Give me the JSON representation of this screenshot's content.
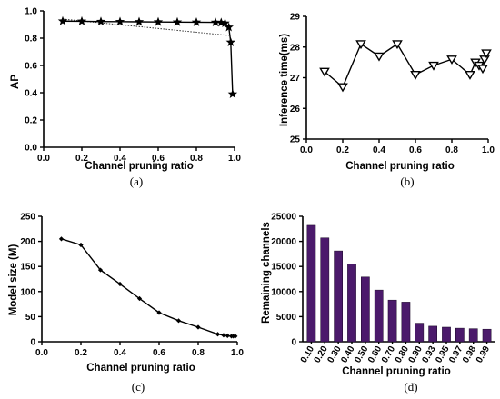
{
  "chart_data": [
    {
      "id": "a",
      "type": "line",
      "caption": "(a)",
      "xlabel": "Channel pruning ratio",
      "ylabel": "AP",
      "xlim": [
        0.0,
        1.0
      ],
      "ylim": [
        0.0,
        1.0
      ],
      "xticks": [
        0.0,
        0.2,
        0.4,
        0.6,
        0.8,
        1.0
      ],
      "xtick_labels": [
        "0.0",
        "0.2",
        "0.4",
        "0.6",
        "0.8",
        "1.0"
      ],
      "yticks": [
        0.0,
        0.2,
        0.4,
        0.6,
        0.8,
        1.0
      ],
      "ytick_labels": [
        "0.0",
        "0.2",
        "0.4",
        "0.6",
        "0.8",
        "1.0"
      ],
      "marker": "star",
      "x": [
        0.1,
        0.2,
        0.3,
        0.4,
        0.5,
        0.6,
        0.7,
        0.8,
        0.9,
        0.93,
        0.95,
        0.97,
        0.98,
        0.99
      ],
      "y": [
        0.925,
        0.924,
        0.922,
        0.921,
        0.92,
        0.919,
        0.918,
        0.917,
        0.916,
        0.914,
        0.91,
        0.88,
        0.77,
        0.39
      ],
      "trend_line": {
        "x": [
          0.1,
          0.97
        ],
        "y": [
          0.94,
          0.82
        ]
      }
    },
    {
      "id": "b",
      "type": "line",
      "caption": "(b)",
      "xlabel": "Channel pruning ratio",
      "ylabel": "Inference time(ms)",
      "xlim": [
        0.0,
        1.0
      ],
      "ylim": [
        25,
        29
      ],
      "xticks": [
        0.0,
        0.2,
        0.4,
        0.6,
        0.8,
        1.0
      ],
      "xtick_labels": [
        "0.0",
        "0.2",
        "0.4",
        "0.6",
        "0.8",
        "1.0"
      ],
      "yticks": [
        25,
        26,
        27,
        28,
        29
      ],
      "ytick_labels": [
        "25",
        "26",
        "27",
        "28",
        "29"
      ],
      "marker": "triangle-down",
      "x": [
        0.1,
        0.2,
        0.3,
        0.4,
        0.5,
        0.6,
        0.7,
        0.8,
        0.9,
        0.93,
        0.95,
        0.97,
        0.98,
        0.99
      ],
      "y": [
        27.2,
        26.7,
        28.1,
        27.7,
        28.1,
        27.1,
        27.4,
        27.6,
        27.1,
        27.5,
        27.4,
        27.3,
        27.6,
        27.8
      ]
    },
    {
      "id": "c",
      "type": "line",
      "caption": "(c)",
      "xlabel": "Channel pruning ratio",
      "ylabel": "Model size (M)",
      "xlim": [
        0.0,
        1.0
      ],
      "ylim": [
        0,
        250
      ],
      "xticks": [
        0.0,
        0.2,
        0.4,
        0.6,
        0.8,
        1.0
      ],
      "xtick_labels": [
        "0.0",
        "0.2",
        "0.4",
        "0.6",
        "0.8",
        "1.0"
      ],
      "yticks": [
        0,
        50,
        100,
        150,
        200,
        250
      ],
      "ytick_labels": [
        "0",
        "50",
        "100",
        "150",
        "200",
        "250"
      ],
      "marker": "diamond",
      "x": [
        0.1,
        0.2,
        0.3,
        0.4,
        0.5,
        0.6,
        0.7,
        0.8,
        0.9,
        0.93,
        0.95,
        0.97,
        0.98,
        0.99
      ],
      "y": [
        205,
        193,
        143,
        115,
        86,
        58,
        42,
        29,
        15,
        13,
        12,
        11,
        11,
        11
      ]
    },
    {
      "id": "d",
      "type": "bar",
      "caption": "(d)",
      "xlabel": "Channel pruning ratio",
      "ylabel": "Remaining channels",
      "ylim": [
        0,
        25000
      ],
      "yticks": [
        0,
        5000,
        10000,
        15000,
        20000,
        25000
      ],
      "ytick_labels": [
        "0",
        "5000",
        "10000",
        "15000",
        "20000",
        "25000"
      ],
      "categories": [
        "0.10",
        "0.20",
        "0.30",
        "0.40",
        "0.50",
        "0.60",
        "0.70",
        "0.80",
        "0.90",
        "0.93",
        "0.95",
        "0.97",
        "0.98",
        "0.99"
      ],
      "values": [
        23200,
        20700,
        18100,
        15500,
        12900,
        10300,
        8300,
        7900,
        3700,
        3100,
        2900,
        2700,
        2600,
        2500
      ],
      "bar_color": "#4b1a6b"
    }
  ]
}
